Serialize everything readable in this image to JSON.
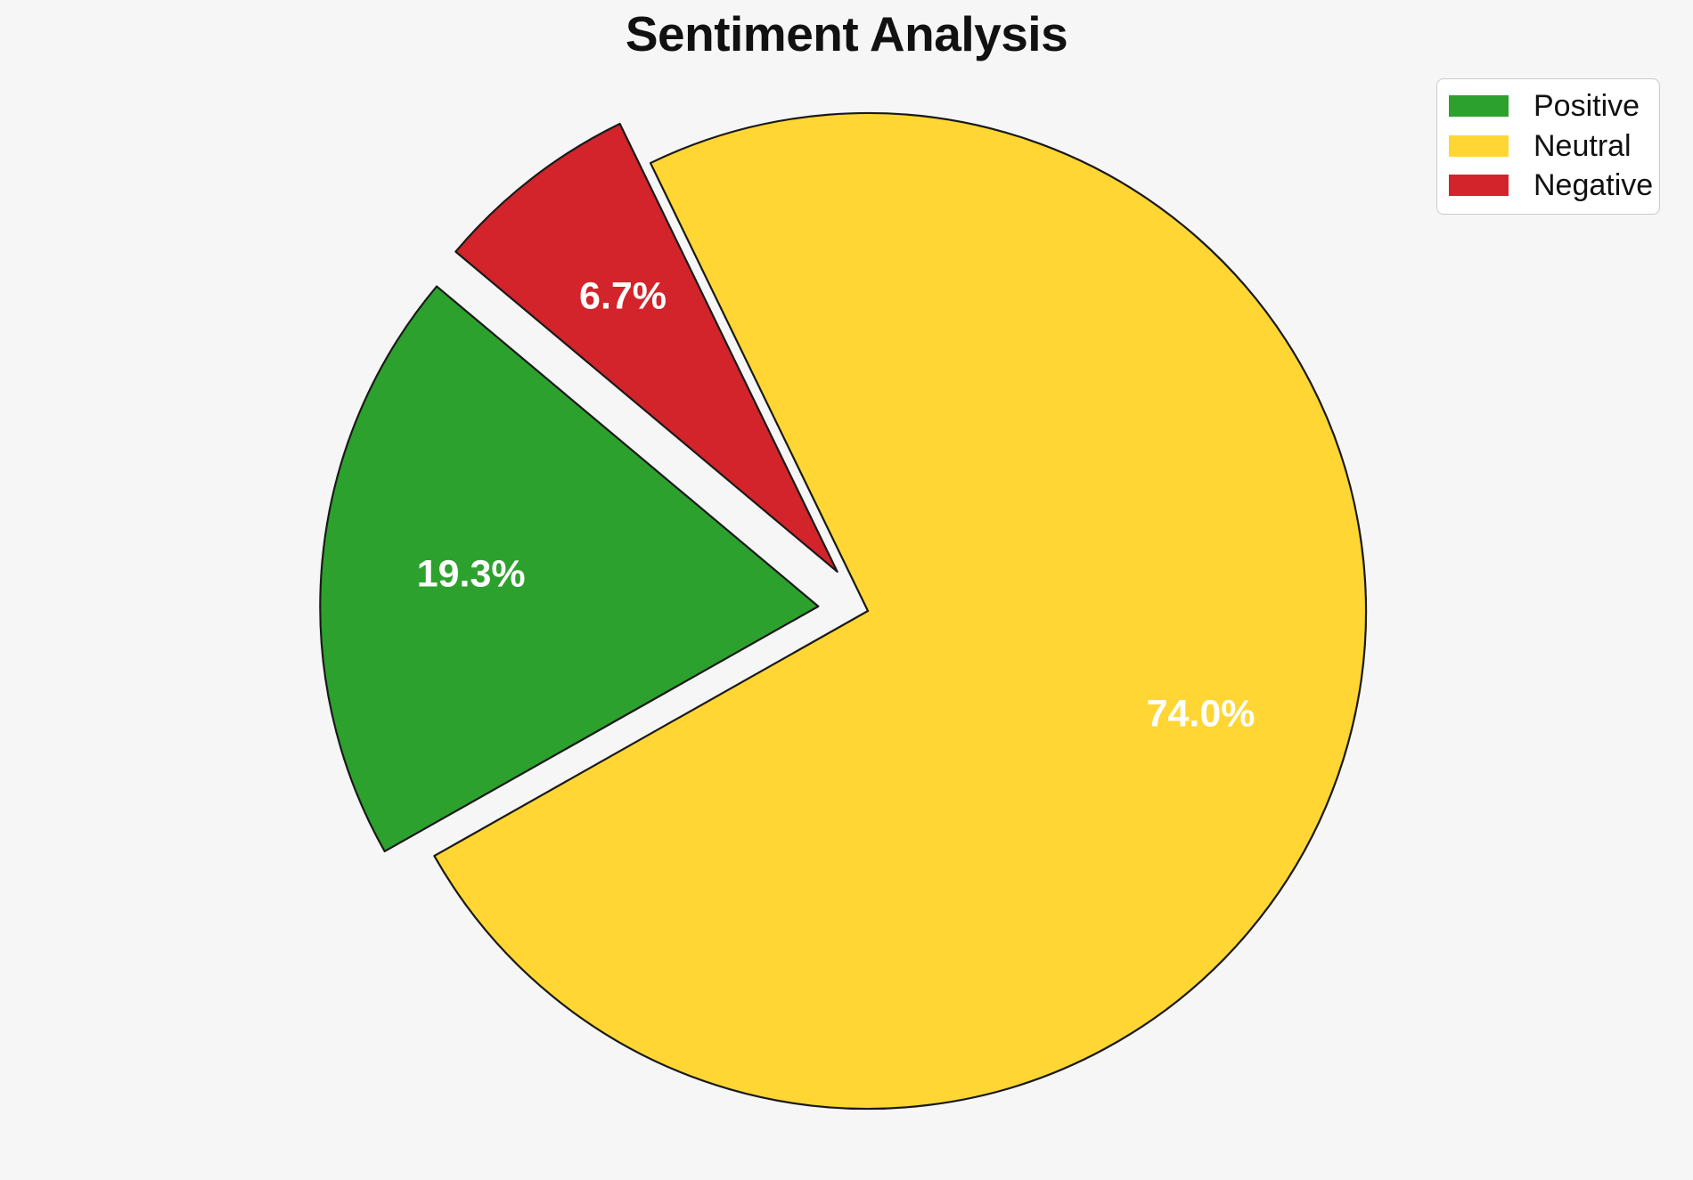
{
  "page": {
    "background": "#F6F6F6"
  },
  "chart_data": {
    "type": "pie",
    "title": "Sentiment Analysis",
    "labels": [
      "Positive",
      "Neutral",
      "Negative"
    ],
    "values": [
      19.3,
      74.0,
      6.7
    ],
    "autopct_labels": [
      "19.3%",
      "74.0%",
      "6.7%"
    ],
    "colors": [
      "#2DA12D",
      "#FFD633",
      "#D2242A"
    ],
    "explode": [
      0.1,
      0,
      0.1
    ],
    "startangle": 140,
    "counterclock": true,
    "pctdistance": 0.7,
    "edgecolor": "#1A1A1A",
    "pct_label_color": "#FFFFFF",
    "legend": {
      "position": "upper right",
      "entries": [
        "Positive",
        "Neutral",
        "Negative"
      ]
    }
  }
}
